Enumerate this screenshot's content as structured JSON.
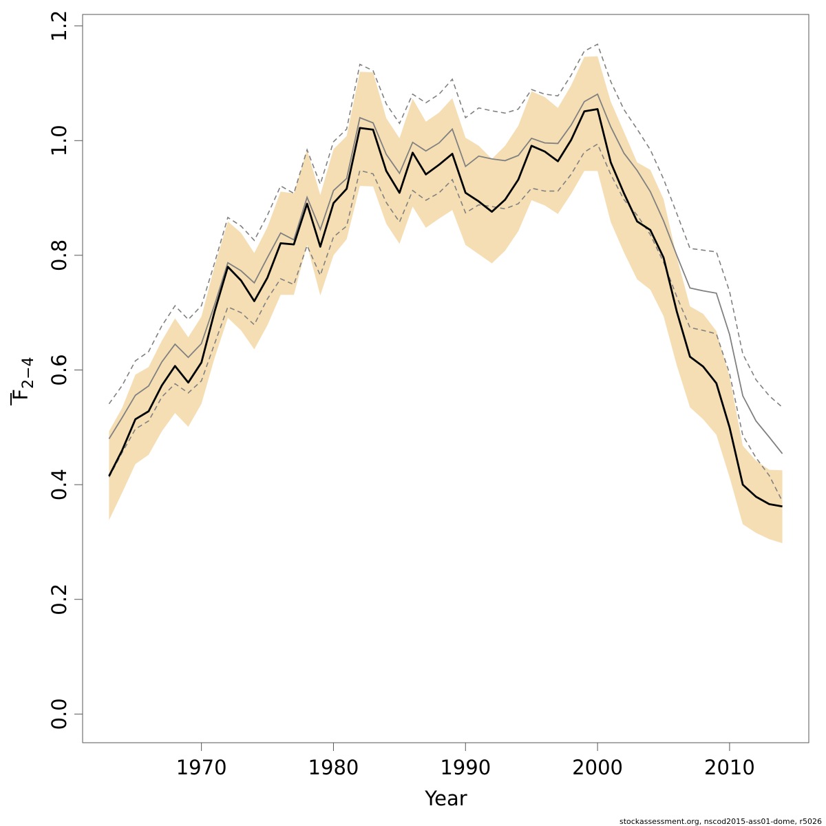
{
  "chart_data": {
    "type": "line",
    "xlabel": "Year",
    "ylabel_main": "F",
    "ylabel_sub": "2−4",
    "footer": "stockassessment.org, nscod2015-ass01-dome, r5026",
    "xlim": [
      1961,
      2016
    ],
    "ylim": [
      -0.05,
      1.22
    ],
    "xticks": [
      1970,
      1980,
      1990,
      2000,
      2010
    ],
    "yticks": [
      0.0,
      0.2,
      0.4,
      0.6,
      0.8,
      1.0,
      1.2
    ],
    "ytick_labels": [
      "0.0",
      "0.2",
      "0.4",
      "0.6",
      "0.8",
      "1.0",
      "1.2"
    ],
    "colors": {
      "band": "#f5deb3",
      "estimate": "#000000",
      "comparison": "#808080"
    },
    "x": [
      1963,
      1964,
      1965,
      1966,
      1967,
      1968,
      1969,
      1970,
      1971,
      1972,
      1973,
      1974,
      1975,
      1976,
      1977,
      1978,
      1979,
      1980,
      1981,
      1982,
      1983,
      1984,
      1985,
      1986,
      1987,
      1988,
      1989,
      1990,
      1991,
      1992,
      1993,
      1994,
      1995,
      1996,
      1997,
      1998,
      1999,
      2000,
      2001,
      2002,
      2003,
      2004,
      2005,
      2006,
      2007,
      2008,
      2009,
      2010,
      2011,
      2012,
      2013,
      2014
    ],
    "series": [
      {
        "role": "band",
        "low": [
          0.338,
          0.386,
          0.436,
          0.452,
          0.493,
          0.525,
          0.501,
          0.541,
          0.621,
          0.691,
          0.669,
          0.636,
          0.678,
          0.731,
          0.731,
          0.818,
          0.73,
          0.8,
          0.828,
          0.921,
          0.92,
          0.855,
          0.82,
          0.885,
          0.848,
          0.864,
          0.879,
          0.818,
          0.802,
          0.786,
          0.808,
          0.842,
          0.896,
          0.887,
          0.872,
          0.907,
          0.947,
          0.947,
          0.858,
          0.805,
          0.758,
          0.74,
          0.694,
          0.608,
          0.535,
          0.514,
          0.487,
          0.413,
          0.331,
          0.316,
          0.305,
          0.298
        ],
        "high": [
          0.493,
          0.534,
          0.592,
          0.605,
          0.651,
          0.69,
          0.657,
          0.693,
          0.781,
          0.859,
          0.839,
          0.804,
          0.849,
          0.911,
          0.908,
          0.984,
          0.905,
          0.985,
          1.008,
          1.12,
          1.119,
          1.039,
          1.004,
          1.073,
          1.033,
          1.049,
          1.074,
          1.005,
          0.991,
          0.968,
          0.991,
          1.026,
          1.086,
          1.076,
          1.057,
          1.096,
          1.146,
          1.147,
          1.068,
          1.015,
          0.962,
          0.949,
          0.898,
          0.797,
          0.711,
          0.698,
          0.668,
          0.588,
          0.468,
          0.442,
          0.426,
          0.425
        ]
      },
      {
        "role": "estimate",
        "values": [
          0.415,
          0.46,
          0.514,
          0.528,
          0.573,
          0.607,
          0.578,
          0.613,
          0.702,
          0.78,
          0.756,
          0.72,
          0.761,
          0.821,
          0.819,
          0.89,
          0.815,
          0.891,
          0.916,
          1.022,
          1.019,
          0.947,
          0.909,
          0.979,
          0.941,
          0.958,
          0.977,
          0.909,
          0.894,
          0.876,
          0.897,
          0.932,
          0.991,
          0.981,
          0.964,
          1.001,
          1.051,
          1.055,
          0.962,
          0.908,
          0.859,
          0.844,
          0.796,
          0.702,
          0.623,
          0.606,
          0.577,
          0.5,
          0.4,
          0.379,
          0.366,
          0.362
        ]
      },
      {
        "role": "comparison",
        "values": [
          0.48,
          0.517,
          0.556,
          0.572,
          0.614,
          0.645,
          0.622,
          0.646,
          0.714,
          0.787,
          0.773,
          0.752,
          0.796,
          0.839,
          0.827,
          0.901,
          0.845,
          0.913,
          0.934,
          1.04,
          1.031,
          0.976,
          0.943,
          0.997,
          0.982,
          0.996,
          1.02,
          0.955,
          0.973,
          0.968,
          0.965,
          0.974,
          1.004,
          0.996,
          0.995,
          1.027,
          1.068,
          1.081,
          1.024,
          0.978,
          0.948,
          0.911,
          0.86,
          0.8,
          0.743,
          0.738,
          0.734,
          0.662,
          0.555,
          0.511,
          0.483,
          0.454
        ]
      },
      {
        "role": "comparison-upper",
        "values": [
          0.541,
          0.573,
          0.616,
          0.632,
          0.677,
          0.712,
          0.688,
          0.712,
          0.787,
          0.866,
          0.851,
          0.826,
          0.87,
          0.921,
          0.908,
          0.984,
          0.924,
          0.998,
          1.02,
          1.133,
          1.122,
          1.064,
          1.03,
          1.081,
          1.066,
          1.081,
          1.107,
          1.04,
          1.057,
          1.052,
          1.048,
          1.055,
          1.089,
          1.081,
          1.078,
          1.114,
          1.156,
          1.168,
          1.103,
          1.054,
          1.02,
          0.984,
          0.933,
          0.873,
          0.812,
          0.809,
          0.806,
          0.737,
          0.628,
          0.583,
          0.555,
          0.535
        ]
      },
      {
        "role": "comparison-lower",
        "values": [
          0.413,
          0.456,
          0.497,
          0.511,
          0.553,
          0.576,
          0.56,
          0.581,
          0.646,
          0.71,
          0.7,
          0.679,
          0.724,
          0.759,
          0.749,
          0.817,
          0.765,
          0.832,
          0.851,
          0.948,
          0.942,
          0.892,
          0.858,
          0.913,
          0.896,
          0.909,
          0.932,
          0.874,
          0.888,
          0.885,
          0.881,
          0.89,
          0.917,
          0.912,
          0.912,
          0.941,
          0.98,
          0.994,
          0.941,
          0.897,
          0.87,
          0.836,
          0.788,
          0.728,
          0.674,
          0.669,
          0.663,
          0.594,
          0.486,
          0.447,
          0.416,
          0.371
        ]
      }
    ]
  }
}
